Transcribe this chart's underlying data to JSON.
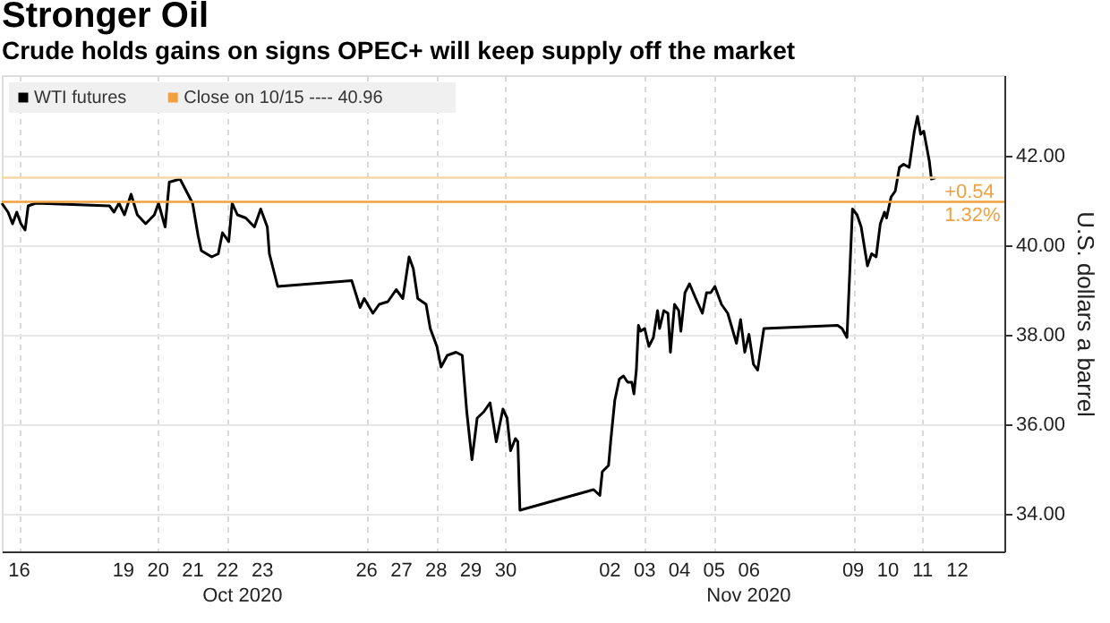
{
  "chart_data": {
    "type": "line",
    "title": "Stronger Oil",
    "subtitle": "Crude holds gains on signs OPEC+ will keep supply off the market",
    "ylabel": "U.S. dollars a barrel",
    "xlim": [
      "2020-10-16T00:00",
      "2020-11-13T20:24"
    ],
    "ylim": [
      33.15,
      43.79
    ],
    "xticks": [
      {
        "value": "2020-10-16T12:00",
        "label": "16"
      },
      {
        "value": "2020-10-19T12:00",
        "label": "19"
      },
      {
        "value": "2020-10-20T12:00",
        "label": "20"
      },
      {
        "value": "2020-10-21T12:00",
        "label": "21"
      },
      {
        "value": "2020-10-22T12:00",
        "label": "22"
      },
      {
        "value": "2020-10-23T12:00",
        "label": "23"
      },
      {
        "value": "2020-10-26T12:00",
        "label": "26"
      },
      {
        "value": "2020-10-27T12:00",
        "label": "27"
      },
      {
        "value": "2020-10-28T12:00",
        "label": "28"
      },
      {
        "value": "2020-10-29T12:00",
        "label": "29"
      },
      {
        "value": "2020-10-30T12:00",
        "label": "30"
      },
      {
        "value": "2020-11-02T12:00",
        "label": "02"
      },
      {
        "value": "2020-11-03T12:00",
        "label": "03"
      },
      {
        "value": "2020-11-04T12:00",
        "label": "04"
      },
      {
        "value": "2020-11-05T12:00",
        "label": "05"
      },
      {
        "value": "2020-11-06T12:00",
        "label": "06"
      },
      {
        "value": "2020-11-09T12:00",
        "label": "09"
      },
      {
        "value": "2020-11-10T12:00",
        "label": "10"
      },
      {
        "value": "2020-11-11T12:00",
        "label": "11"
      },
      {
        "value": "2020-11-12T12:00",
        "label": "12"
      }
    ],
    "yticks": [
      {
        "value": 34,
        "label": "34.00"
      },
      {
        "value": 36,
        "label": "36.00"
      },
      {
        "value": 38,
        "label": "38.00"
      },
      {
        "value": 40,
        "label": "40.00"
      },
      {
        "value": 42,
        "label": "42.00"
      }
    ],
    "grid": true,
    "legend": "top left",
    "marker": "none",
    "line_style": "solid",
    "series": [
      {
        "name": "WTI futures",
        "color": "#000000",
        "x": [
          "2020-10-16T00:00",
          "2020-10-16T04:19",
          "2020-10-16T07:26",
          "2020-10-16T10:19",
          "2020-10-16T13:12",
          "2020-10-16T16:05",
          "2020-10-16T18:14",
          "2020-10-16T23:31",
          "2020-10-19T02:24",
          "2020-10-19T05:31",
          "2020-10-19T08:53",
          "2020-10-19T12:43",
          "2020-10-19T17:17",
          "2020-10-19T21:36",
          "2020-10-20T03:22",
          "2020-10-20T09:22",
          "2020-10-20T12:14",
          "2020-10-20T16:48",
          "2020-10-20T19:41",
          "2020-10-21T03:07",
          "2020-10-21T07:26",
          "2020-10-21T11:46",
          "2020-10-21T15:36",
          "2020-10-21T17:46",
          "2020-10-22T00:58",
          "2020-10-22T05:31",
          "2020-10-22T08:24",
          "2020-10-22T12:43",
          "2020-10-22T15:07",
          "2020-10-22T18:43",
          "2020-10-23T00:29",
          "2020-10-23T06:29",
          "2020-10-23T10:48",
          "2020-10-23T15:22",
          "2020-10-23T16:48",
          "2020-10-23T22:34",
          "2020-10-26T01:41",
          "2020-10-26T07:26",
          "2020-10-26T10:19",
          "2020-10-26T16:19",
          "2020-10-26T20:38",
          "2020-10-27T02:38",
          "2020-10-27T08:24",
          "2020-10-27T12:58",
          "2020-10-27T17:17",
          "2020-10-27T20:10",
          "2020-10-27T23:17",
          "2020-10-28T05:02",
          "2020-10-28T07:55",
          "2020-10-28T12:29",
          "2020-10-28T15:22",
          "2020-10-28T19:41",
          "2020-10-29T01:41",
          "2020-10-29T06:00",
          "2020-10-29T09:07",
          "2020-10-29T12:43",
          "2020-10-29T16:19",
          "2020-10-29T20:53",
          "2020-10-30T01:12",
          "2020-10-30T05:31",
          "2020-10-30T10:05",
          "2020-10-30T12:58",
          "2020-10-30T15:22",
          "2020-10-30T18:43",
          "2020-10-30T20:24",
          "2020-10-30T21:50",
          "2020-11-02T00:43",
          "2020-11-02T05:02",
          "2020-11-02T06:43",
          "2020-11-02T11:02",
          "2020-11-02T12:29",
          "2020-11-02T15:22",
          "2020-11-02T18:29",
          "2020-11-02T21:22",
          "2020-11-03T00:14",
          "2020-11-03T03:07",
          "2020-11-03T04:34",
          "2020-11-03T06:14",
          "2020-11-03T07:41",
          "2020-11-03T09:07",
          "2020-11-03T12:00",
          "2020-11-03T14:53",
          "2020-11-03T18:00",
          "2020-11-03T20:53",
          "2020-11-03T22:19",
          "2020-11-04T01:12",
          "2020-11-04T04:05",
          "2020-11-04T05:46",
          "2020-11-04T08:38",
          "2020-11-04T11:31",
          "2020-11-04T12:58",
          "2020-11-04T15:50",
          "2020-11-04T18:58",
          "2020-11-04T23:17",
          "2020-11-05T03:50",
          "2020-11-05T06:43",
          "2020-11-05T09:36",
          "2020-11-05T12:29",
          "2020-11-05T17:02",
          "2020-11-05T21:22",
          "2020-11-06T03:22",
          "2020-11-06T06:14",
          "2020-11-06T09:07",
          "2020-11-06T12:00",
          "2020-11-06T15:07",
          "2020-11-06T18:00",
          "2020-11-06T22:19",
          "2020-11-09T01:12",
          "2020-11-09T04:19",
          "2020-11-09T07:41",
          "2020-11-09T10:05",
          "2020-11-09T11:31",
          "2020-11-09T14:38",
          "2020-11-09T17:31",
          "2020-11-09T21:50",
          "2020-11-10T00:43",
          "2020-11-10T03:50",
          "2020-11-10T06:43",
          "2020-11-10T09:36",
          "2020-11-10T11:02",
          "2020-11-10T14:10",
          "2020-11-10T17:02",
          "2020-11-10T19:55",
          "2020-11-10T22:48",
          "2020-11-11T02:38",
          "2020-11-11T06:14",
          "2020-11-11T08:24",
          "2020-11-11T10:34",
          "2020-11-11T12:43",
          "2020-11-11T16:34",
          "2020-11-11T18:00",
          "2020-11-11T20:53"
        ],
        "values": [
          40.93,
          40.73,
          40.47,
          40.73,
          40.47,
          40.33,
          40.87,
          40.93,
          40.87,
          40.73,
          40.93,
          40.67,
          41.13,
          40.67,
          40.47,
          40.67,
          40.93,
          40.4,
          41.4,
          41.47,
          41.2,
          40.93,
          40.2,
          39.87,
          39.73,
          39.8,
          40.27,
          40.07,
          40.93,
          40.67,
          40.6,
          40.4,
          40.8,
          40.4,
          39.8,
          39.07,
          39.2,
          38.6,
          38.8,
          38.47,
          38.67,
          38.73,
          39.0,
          38.8,
          39.73,
          39.47,
          38.8,
          38.67,
          38.13,
          37.73,
          37.27,
          37.53,
          37.6,
          37.53,
          36.27,
          35.2,
          36.13,
          36.27,
          36.47,
          35.6,
          36.33,
          36.13,
          35.4,
          35.67,
          35.6,
          34.07,
          34.53,
          34.4,
          34.93,
          35.07,
          35.6,
          36.53,
          37.0,
          37.07,
          36.93,
          36.93,
          36.67,
          37.2,
          38.2,
          38.07,
          38.13,
          37.73,
          37.93,
          38.53,
          38.13,
          38.53,
          38.47,
          37.6,
          38.67,
          38.53,
          38.07,
          38.93,
          39.13,
          38.8,
          38.47,
          38.93,
          38.93,
          39.07,
          38.67,
          38.47,
          37.8,
          38.33,
          37.6,
          38.0,
          37.33,
          37.2,
          38.13,
          38.2,
          38.13,
          37.93,
          39.73,
          40.8,
          40.67,
          40.4,
          39.53,
          39.8,
          39.73,
          40.47,
          40.73,
          40.6,
          41.07,
          41.2,
          41.73,
          41.8,
          41.73,
          42.54,
          42.87,
          42.47,
          42.54,
          41.87,
          41.47,
          41.5
        ]
      }
    ],
    "ref_lines": [
      {
        "axis": "y",
        "value": 40.96,
        "label": "Close on 10/15 ---- 40.96",
        "color": "#f0a040"
      },
      {
        "axis": "y",
        "value": 41.5,
        "color": "#f7d7a8"
      }
    ],
    "annotations": [
      "Oct 2020",
      "Nov 2020",
      {
        "text": "+0.54",
        "x": "2020-11-11T20:53",
        "y": 41.5
      },
      {
        "text": "1.32%",
        "x": "2020-11-11T20:53",
        "y": 41.5
      }
    ]
  }
}
